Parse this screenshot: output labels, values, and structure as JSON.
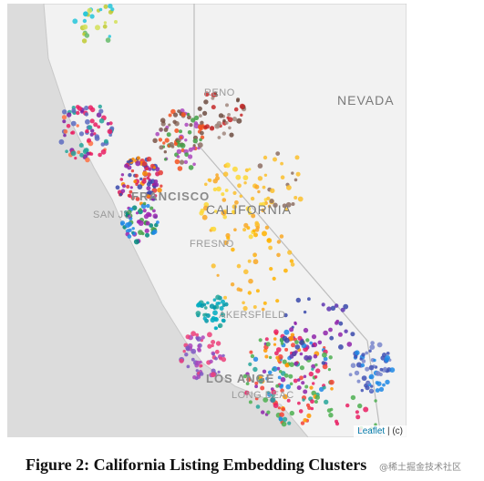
{
  "map": {
    "labels": {
      "reno": "RENO",
      "nevada": "NEVADA",
      "san_francisco": "FRANCISCO",
      "california": "CALIFORNIA",
      "san_jose": "SAN JO",
      "fresno": "FRESNO",
      "bakersfield": "AKERSFIELD",
      "los_angeles": "LOS ANGE",
      "long_beach": "LONG BEAC"
    },
    "attribution": {
      "leaflet": "Leaflet",
      "rest": " | (c)"
    },
    "colors": {
      "ocean": "#dcdcdc",
      "land": "#f2f2f2",
      "border": "#c8c8c8"
    }
  },
  "caption": "Figure 2: California Listing Embedding Clusters",
  "watermark": "@稀土掘金技术社区"
}
